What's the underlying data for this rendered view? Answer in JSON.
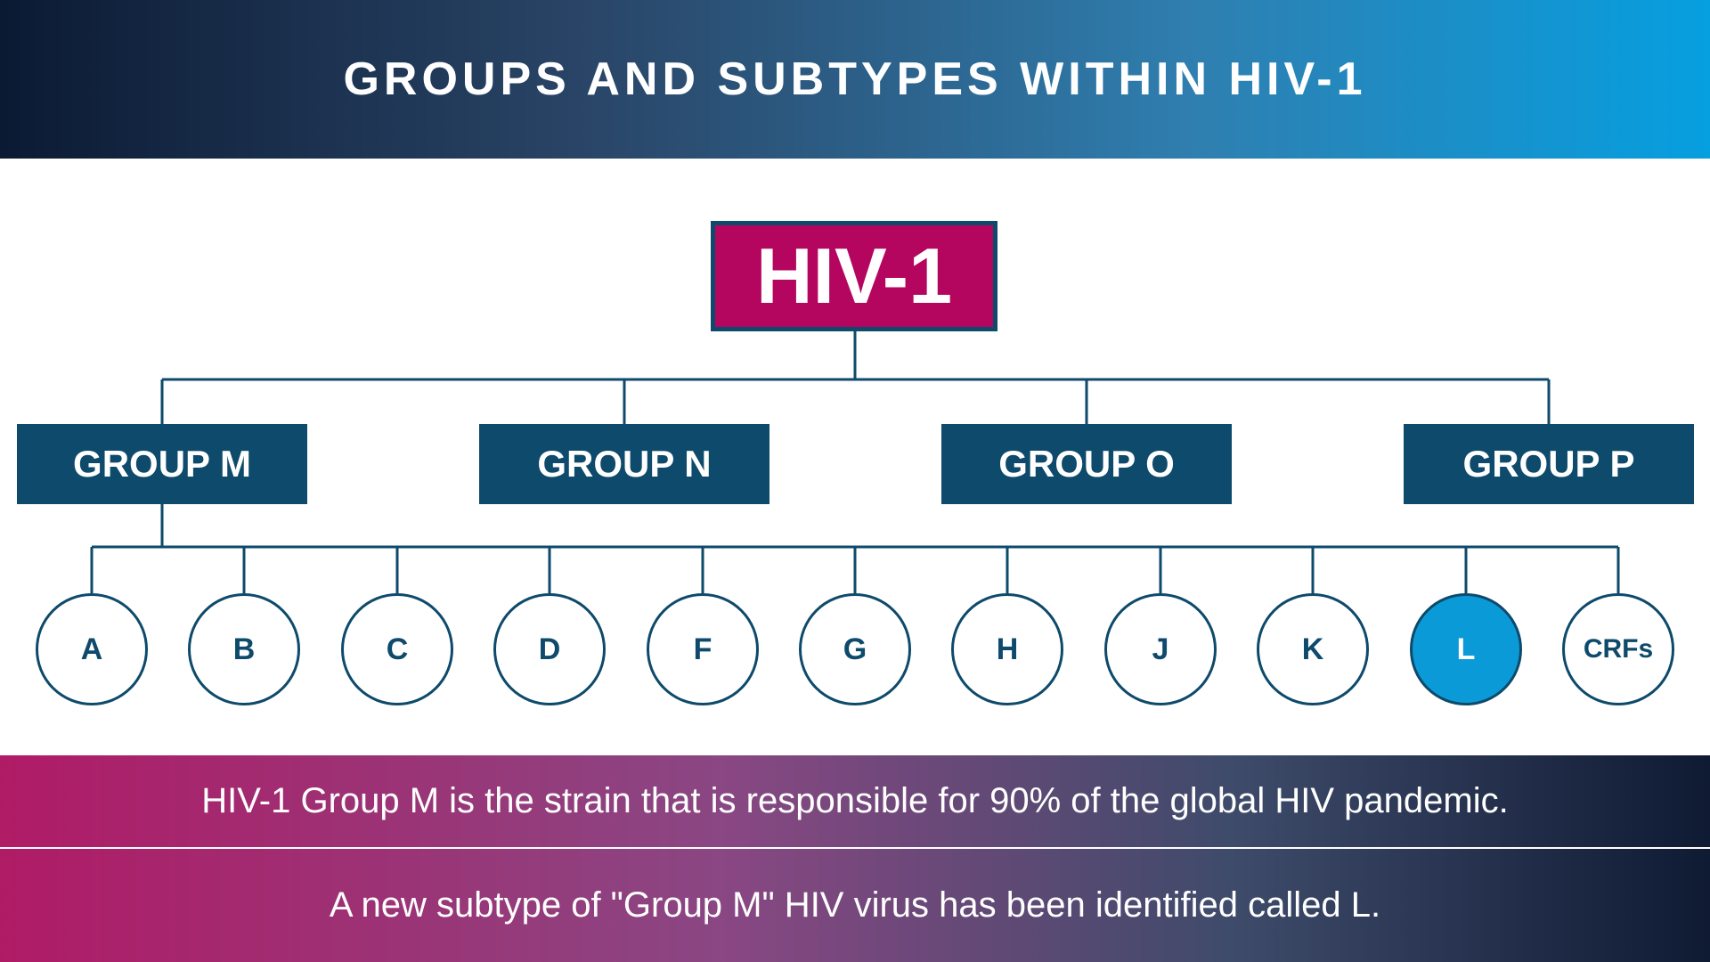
{
  "header": {
    "title": "GROUPS AND SUBTYPES WITHIN HIV-1"
  },
  "tree": {
    "root": "HIV-1",
    "groups": [
      "GROUP M",
      "GROUP N",
      "GROUP O",
      "GROUP P"
    ],
    "subtypes": [
      "A",
      "B",
      "C",
      "D",
      "F",
      "G",
      "H",
      "J",
      "K",
      "L",
      "CRFs"
    ],
    "highlighted_subtype": "L"
  },
  "footer": {
    "line1": "HIV-1 Group M is the strain that is responsible for 90% of the global HIV pandemic.",
    "line2": "A new subtype of \"Group M\" HIV virus has been identified called L."
  },
  "colors": {
    "navy": "#0e4a6b",
    "magenta": "#b5065f",
    "highlight_blue": "#0b9ad8"
  }
}
